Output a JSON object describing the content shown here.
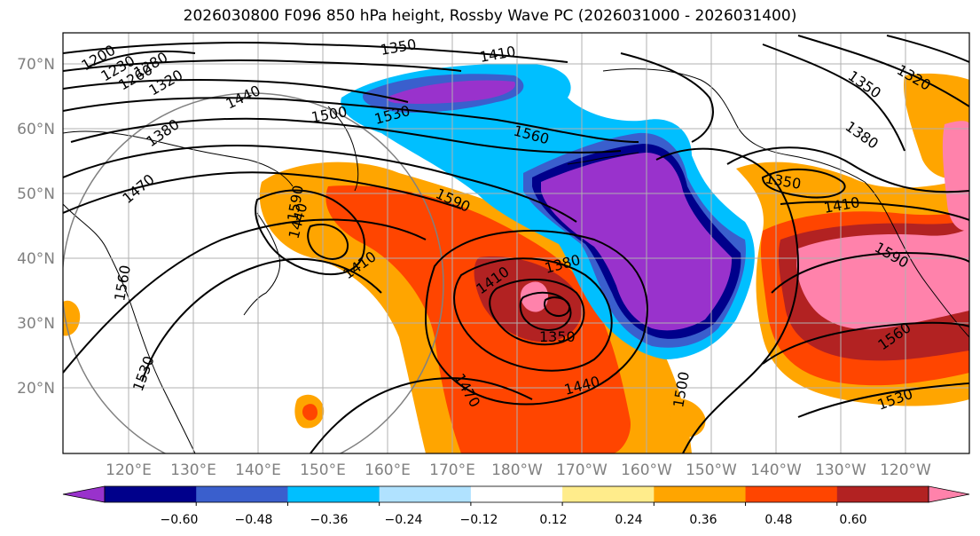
{
  "title": "2026030800 F096 850 hPa height, Rossby Wave PC (2026031000 - 2026031400)",
  "lat_labels": [
    "70°N",
    "60°N",
    "50°N",
    "40°N",
    "30°N",
    "20°N"
  ],
  "lon_labels": [
    "120°E",
    "130°E",
    "140°E",
    "150°E",
    "160°E",
    "170°E",
    "180°W",
    "170°W",
    "160°W",
    "150°W",
    "140°W",
    "130°W",
    "120°W"
  ],
  "contour_labels": [
    "1200",
    "1230",
    "1260",
    "1280",
    "1320",
    "1350",
    "1410",
    "1440",
    "1380",
    "1500",
    "1530",
    "1560",
    "1470",
    "1590",
    "1440",
    "1410",
    "1380",
    "1410",
    "1350",
    "1440",
    "1470",
    "1500",
    "1530",
    "1560",
    "1590",
    "1350",
    "1410",
    "1380",
    "1320",
    "1350",
    "1590",
    "1560",
    "1530"
  ],
  "colorbar": {
    "ticks": [
      "−0.60",
      "−0.48",
      "−0.36",
      "−0.24",
      "−0.12",
      "0.12",
      "0.24",
      "0.36",
      "0.48",
      "0.60"
    ],
    "colors": [
      "#9932cc",
      "#00008b",
      "#3a5fcd",
      "#00bfff",
      "#b0e2ff",
      "#ffffff",
      "#ffec8b",
      "#ffa500",
      "#ff4500",
      "#b22222",
      "#ff82ab"
    ]
  }
}
